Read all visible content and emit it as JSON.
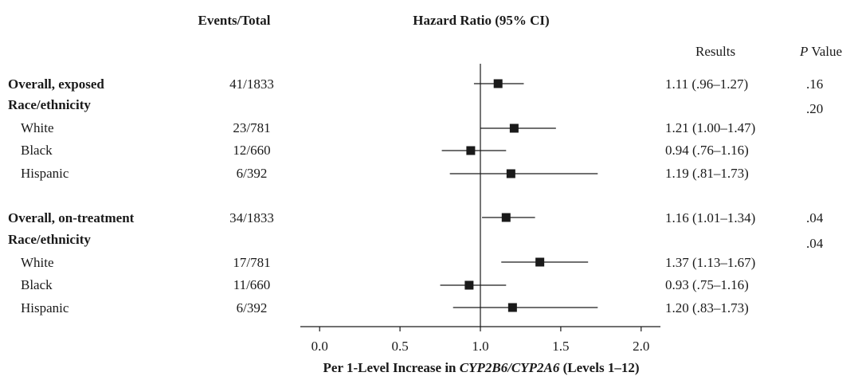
{
  "headers": {
    "events": "Events/Total",
    "hr": "Hazard Ratio (95% CI)",
    "results": "Results",
    "p_italic": "P",
    "p_rest": " Value"
  },
  "rows": [
    {
      "label": "Overall, exposed",
      "bold": true,
      "events": "41/1833",
      "result": "1.11 (.96–1.27)",
      "p": ".16"
    },
    {
      "label": "Race/ethnicity",
      "bold": true,
      "events": "",
      "result": "",
      "p": ".20"
    },
    {
      "label": "White",
      "bold": false,
      "events": "23/781",
      "result": "1.21 (1.00–1.47)",
      "p": ""
    },
    {
      "label": "Black",
      "bold": false,
      "events": "12/660",
      "result": "0.94 (.76–1.16)",
      "p": ""
    },
    {
      "label": "Hispanic",
      "bold": false,
      "events": "6/392",
      "result": "1.19 (.81–1.73)",
      "p": ""
    },
    {
      "label": "Overall, on-treatment",
      "bold": true,
      "events": "34/1833",
      "result": "1.16 (1.01–1.34)",
      "p": ".04"
    },
    {
      "label": "Race/ethnicity",
      "bold": true,
      "events": "",
      "result": "",
      "p": ".04"
    },
    {
      "label": "White",
      "bold": false,
      "events": "17/781",
      "result": "1.37 (1.13–1.67)",
      "p": ""
    },
    {
      "label": "Black",
      "bold": false,
      "events": "11/660",
      "result": "0.93 (.75–1.16)",
      "p": ""
    },
    {
      "label": "Hispanic",
      "bold": false,
      "events": "6/392",
      "result": "1.20 (.83–1.73)",
      "p": ""
    }
  ],
  "xlabel": {
    "pre": "Per 1-Level Increase in ",
    "italic": "CYP2B6/CYP2A6",
    "post": " (Levels 1–12)"
  },
  "chart_data": {
    "type": "forest",
    "xlim": [
      -0.12,
      2.12
    ],
    "xticks": [
      "0.0",
      "0.5",
      "1.0",
      "1.5",
      "2.0"
    ],
    "reference_line": 1.0,
    "marker_color": "#1a1a1a",
    "points": [
      {
        "row": "Overall, exposed",
        "hr": 1.11,
        "lo": 0.96,
        "hi": 1.27
      },
      {
        "row": "White",
        "hr": 1.21,
        "lo": 1.0,
        "hi": 1.47
      },
      {
        "row": "Black",
        "hr": 0.94,
        "lo": 0.76,
        "hi": 1.16
      },
      {
        "row": "Hispanic",
        "hr": 1.19,
        "lo": 0.81,
        "hi": 1.73
      },
      {
        "row": "Overall, on-treatment",
        "hr": 1.16,
        "lo": 1.01,
        "hi": 1.34
      },
      {
        "row": "White",
        "hr": 1.37,
        "lo": 1.13,
        "hi": 1.67
      },
      {
        "row": "Black",
        "hr": 0.93,
        "lo": 0.75,
        "hi": 1.16
      },
      {
        "row": "Hispanic",
        "hr": 1.2,
        "lo": 0.83,
        "hi": 1.73
      }
    ]
  }
}
